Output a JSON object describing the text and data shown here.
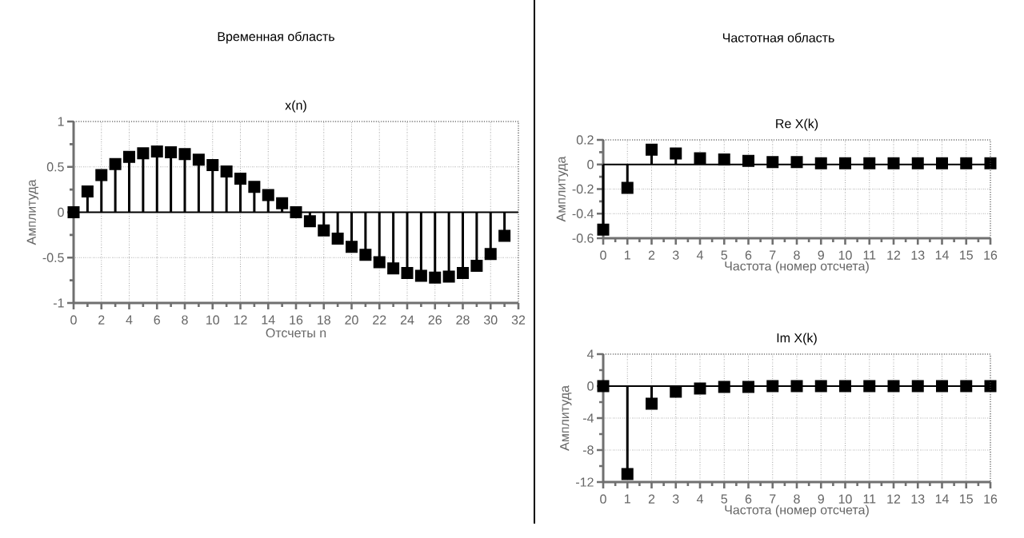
{
  "chart_data": [
    {
      "type": "lollipop",
      "title": "x(n)",
      "xlabel": "Отсчеты  n",
      "ylabel": "Амплитуда",
      "annotations": [
        "Временная область"
      ],
      "color": "#000000",
      "marker": "square",
      "grid": true,
      "x": [
        0,
        1,
        2,
        3,
        4,
        5,
        6,
        7,
        8,
        9,
        10,
        11,
        12,
        13,
        14,
        15,
        16,
        17,
        18,
        19,
        20,
        21,
        22,
        23,
        24,
        25,
        26,
        27,
        28,
        29,
        30,
        31
      ],
      "values": [
        0,
        0.23,
        0.41,
        0.53,
        0.61,
        0.65,
        0.67,
        0.66,
        0.64,
        0.58,
        0.52,
        0.45,
        0.37,
        0.28,
        0.19,
        0.1,
        0,
        -0.1,
        -0.2,
        -0.29,
        -0.38,
        -0.47,
        -0.55,
        -0.62,
        -0.67,
        -0.7,
        -0.72,
        -0.71,
        -0.67,
        -0.59,
        -0.46,
        -0.26
      ],
      "xlim": [
        0,
        32
      ],
      "xticks": [
        0,
        2,
        4,
        6,
        8,
        10,
        12,
        14,
        16,
        18,
        20,
        22,
        24,
        26,
        28,
        30,
        32
      ],
      "ylim": [
        -1,
        1
      ],
      "yticks": [
        -1,
        -0.5,
        0,
        0.5,
        1
      ]
    },
    {
      "type": "lollipop",
      "title": "Re X(k)",
      "xlabel": "Частота (номер отсчета)",
      "ylabel": "Амплитуда",
      "annotations": [
        "Частотная область"
      ],
      "color": "#000000",
      "marker": "square",
      "grid": true,
      "x": [
        0,
        1,
        2,
        3,
        4,
        5,
        6,
        7,
        8,
        9,
        10,
        11,
        12,
        13,
        14,
        15,
        16
      ],
      "values": [
        -0.53,
        -0.19,
        0.12,
        0.09,
        0.05,
        0.04,
        0.03,
        0.02,
        0.02,
        0.01,
        0.01,
        0.01,
        0.01,
        0.01,
        0.01,
        0.01,
        0.01
      ],
      "xlim": [
        0,
        16
      ],
      "xticks": [
        0,
        1,
        2,
        3,
        4,
        5,
        6,
        7,
        8,
        9,
        10,
        11,
        12,
        13,
        14,
        15,
        16
      ],
      "ylim": [
        -0.6,
        0.2
      ],
      "yticks": [
        -0.6,
        -0.4,
        -0.2,
        0,
        0.2
      ]
    },
    {
      "type": "lollipop",
      "title": "Im X(k)",
      "xlabel": "Частота (номер отсчета)",
      "ylabel": "Амплитуда",
      "color": "#000000",
      "marker": "square",
      "grid": true,
      "x": [
        0,
        1,
        2,
        3,
        4,
        5,
        6,
        7,
        8,
        9,
        10,
        11,
        12,
        13,
        14,
        15,
        16
      ],
      "values": [
        0,
        -11,
        -2.2,
        -0.7,
        -0.3,
        -0.1,
        -0.1,
        0,
        0,
        0,
        0,
        0,
        0,
        0,
        0,
        0,
        0
      ],
      "xlim": [
        0,
        16
      ],
      "xticks": [
        0,
        1,
        2,
        3,
        4,
        5,
        6,
        7,
        8,
        9,
        10,
        11,
        12,
        13,
        14,
        15,
        16
      ],
      "ylim": [
        -12,
        4
      ],
      "yticks": [
        -12,
        -8,
        -4,
        0,
        4
      ]
    }
  ]
}
